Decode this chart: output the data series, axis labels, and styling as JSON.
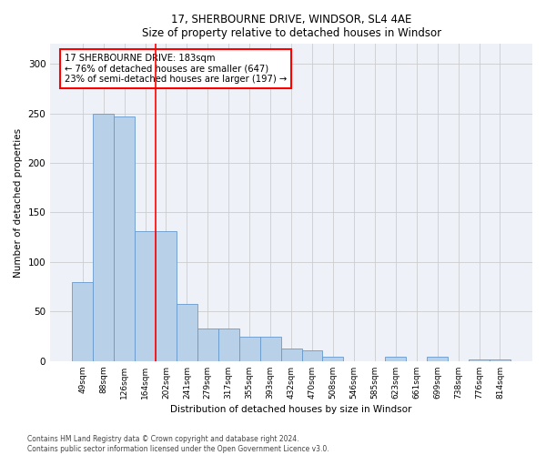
{
  "title": "17, SHERBOURNE DRIVE, WINDSOR, SL4 4AE",
  "subtitle": "Size of property relative to detached houses in Windsor",
  "xlabel": "Distribution of detached houses by size in Windsor",
  "ylabel": "Number of detached properties",
  "bar_color": "#b8d0e8",
  "bar_edge_color": "#6699cc",
  "categories": [
    "49sqm",
    "88sqm",
    "126sqm",
    "164sqm",
    "202sqm",
    "241sqm",
    "279sqm",
    "317sqm",
    "355sqm",
    "393sqm",
    "432sqm",
    "470sqm",
    "508sqm",
    "546sqm",
    "585sqm",
    "623sqm",
    "661sqm",
    "699sqm",
    "738sqm",
    "776sqm",
    "814sqm"
  ],
  "values": [
    80,
    250,
    247,
    131,
    131,
    58,
    33,
    33,
    25,
    25,
    13,
    11,
    4,
    0,
    0,
    4,
    0,
    4,
    0,
    2,
    2
  ],
  "ylim": [
    0,
    320
  ],
  "yticks": [
    0,
    50,
    100,
    150,
    200,
    250,
    300
  ],
  "red_line_x": 3.5,
  "annotation_text": "17 SHERBOURNE DRIVE: 183sqm\n← 76% of detached houses are smaller (647)\n23% of semi-detached houses are larger (197) →",
  "annotation_box_color": "white",
  "annotation_box_edge": "red",
  "footer_line1": "Contains HM Land Registry data © Crown copyright and database right 2024.",
  "footer_line2": "Contains public sector information licensed under the Open Government Licence v3.0.",
  "grid_color": "#cccccc",
  "background_color": "#eef2f8"
}
